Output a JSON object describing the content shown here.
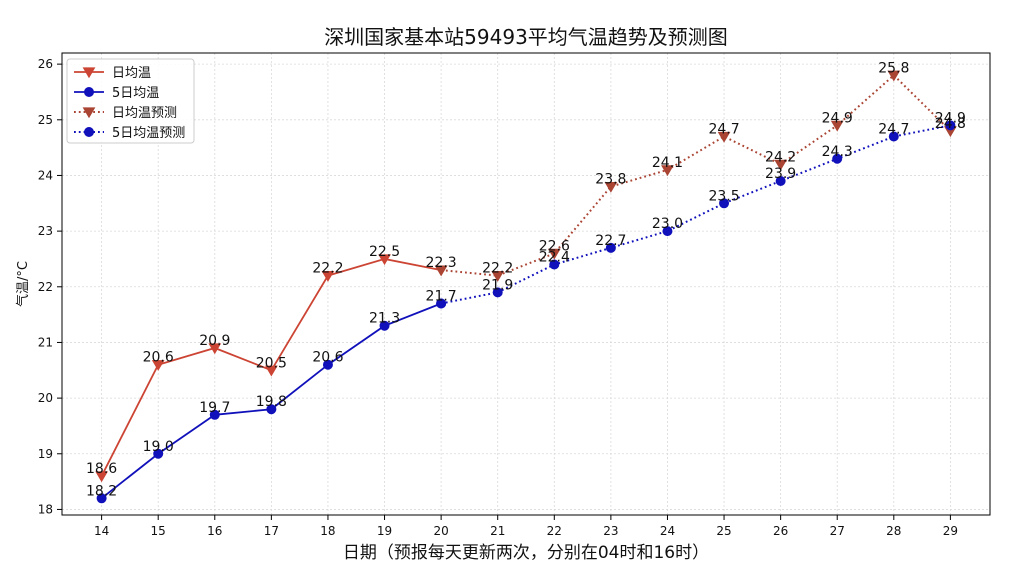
{
  "chart_data": {
    "type": "line",
    "title": "深圳国家基本站59493平均气温趋势及预测图",
    "xlabel": "日期（预报每天更新两次，分别在04时和16时）",
    "ylabel": "气温/°C",
    "x": [
      14,
      15,
      16,
      17,
      18,
      19,
      20,
      21,
      22,
      23,
      24,
      25,
      26,
      27,
      28,
      29
    ],
    "ylim": [
      17.9,
      26.2
    ],
    "yticks": [
      18,
      19,
      20,
      21,
      22,
      23,
      24,
      25,
      26
    ],
    "grid": true,
    "legend_position": "top-left",
    "series": [
      {
        "name": "日均温",
        "color": "#cc4433",
        "style": "solid",
        "marker": "triangle-down",
        "x": [
          14,
          15,
          16,
          17,
          18,
          19,
          20
        ],
        "values": [
          18.6,
          20.6,
          20.9,
          20.5,
          22.2,
          22.5,
          22.3
        ],
        "labels": [
          "18.6",
          "20.6",
          "20.9",
          "20.5",
          "22.2",
          "22.5",
          "22.3"
        ]
      },
      {
        "name": "5日均温",
        "color": "#1111bb",
        "style": "solid",
        "marker": "circle",
        "x": [
          14,
          15,
          16,
          17,
          18,
          19,
          20
        ],
        "values": [
          18.2,
          19.0,
          19.7,
          19.8,
          20.6,
          21.3,
          21.7
        ],
        "labels": [
          "18.2",
          "19.0",
          "19.7",
          "19.8",
          "20.6",
          "21.3",
          "21.7"
        ]
      },
      {
        "name": "日均温预测",
        "color": "#aa4433",
        "style": "dotted",
        "marker": "triangle-down",
        "x": [
          20,
          21,
          22,
          23,
          24,
          25,
          26,
          27,
          28,
          29
        ],
        "values": [
          22.3,
          22.2,
          22.6,
          23.8,
          24.1,
          24.7,
          24.2,
          24.9,
          25.8,
          24.8
        ],
        "labels": [
          "",
          "22.2",
          "22.6",
          "23.8",
          "24.1",
          "24.7",
          "24.2",
          "24.9",
          "25.8",
          "24.8"
        ]
      },
      {
        "name": "5日均温预测",
        "color": "#1111bb",
        "style": "dotted",
        "marker": "circle",
        "x": [
          20,
          21,
          22,
          23,
          24,
          25,
          26,
          27,
          28,
          29
        ],
        "values": [
          21.7,
          21.9,
          22.4,
          22.7,
          23.0,
          23.5,
          23.9,
          24.3,
          24.7,
          24.9
        ],
        "labels": [
          "",
          "21.9",
          "22.4",
          "22.7",
          "23.0",
          "23.5",
          "23.9",
          "24.3",
          "24.7",
          "24.9"
        ]
      }
    ]
  }
}
